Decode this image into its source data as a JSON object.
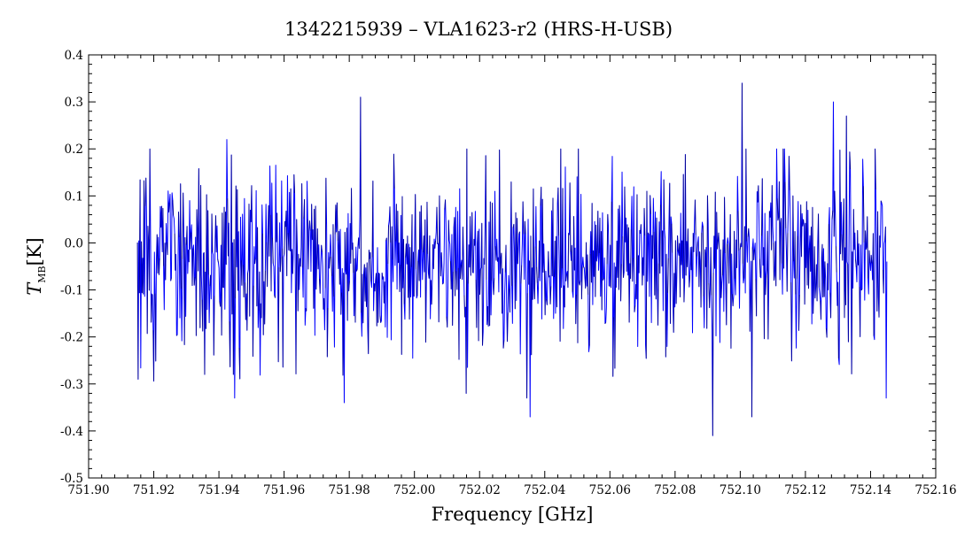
{
  "chart_data": {
    "type": "line",
    "title": "1342215939 – VLA1623-r2 (HRS-H-USB)",
    "xlabel": "Frequency [GHz]",
    "ylabel_main": "T",
    "ylabel_sub": "MB",
    "ylabel_unit": "[K]",
    "xlim": [
      751.9,
      752.16
    ],
    "ylim": [
      -0.5,
      0.4
    ],
    "x_ticks": [
      "751.90",
      "751.92",
      "751.94",
      "751.96",
      "751.98",
      "752.00",
      "752.02",
      "752.04",
      "752.06",
      "752.08",
      "752.10",
      "752.12",
      "752.14",
      "752.16"
    ],
    "y_ticks": [
      "-0.5",
      "-0.4",
      "-0.3",
      "-0.2",
      "-0.1",
      "0.0",
      "0.1",
      "0.2",
      "0.3",
      "0.4"
    ],
    "grid": false,
    "series": [
      {
        "color": "#0000ff",
        "x_start": 751.915,
        "x_end": 752.145,
        "baseline_mean": -0.04,
        "noise_rms": 0.1,
        "peaks": [
          {
            "x": 751.9425,
            "y": 0.22
          },
          {
            "x": 751.9835,
            "y": 0.31
          },
          {
            "x": 752.1005,
            "y": 0.34
          },
          {
            "x": 752.1285,
            "y": 0.3
          },
          {
            "x": 752.1325,
            "y": 0.27
          }
        ],
        "troughs": [
          {
            "x": 751.9445,
            "y": -0.28
          },
          {
            "x": 752.0355,
            "y": -0.37
          },
          {
            "x": 752.0915,
            "y": -0.41
          },
          {
            "x": 752.1035,
            "y": -0.37
          },
          {
            "x": 751.9785,
            "y": -0.34
          }
        ]
      }
    ]
  }
}
